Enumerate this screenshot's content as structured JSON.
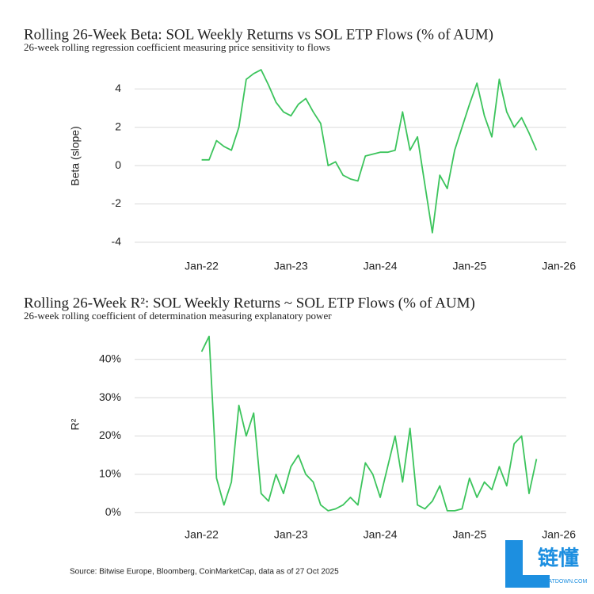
{
  "chart_data": [
    {
      "type": "line",
      "title": "Rolling 26-Week Beta: SOL Weekly Returns vs SOL ETP Flows (% of AUM)",
      "subtitle": "26-week rolling regression coefficient measuring price sensitivity to flows",
      "y_label": "Beta (slope)",
      "x": [
        "2022-01",
        "2022-02",
        "2022-03",
        "2022-04",
        "2022-05",
        "2022-06",
        "2022-07",
        "2022-08",
        "2022-09",
        "2022-10",
        "2022-11",
        "2022-12",
        "2023-01",
        "2023-02",
        "2023-03",
        "2023-04",
        "2023-05",
        "2023-06",
        "2023-07",
        "2023-08",
        "2023-09",
        "2023-10",
        "2023-11",
        "2023-12",
        "2024-01",
        "2024-02",
        "2024-03",
        "2024-04",
        "2024-05",
        "2024-06",
        "2024-07",
        "2024-08",
        "2024-09",
        "2024-10",
        "2024-11",
        "2024-12",
        "2025-01",
        "2025-02",
        "2025-03",
        "2025-04",
        "2025-05",
        "2025-06",
        "2025-07",
        "2025-08",
        "2025-09",
        "2025-10"
      ],
      "series": [
        {
          "name": "Beta",
          "color": "#3cc45c",
          "values": [
            0.3,
            0.3,
            1.3,
            1.0,
            0.8,
            2.0,
            4.5,
            4.8,
            5.0,
            4.2,
            3.3,
            2.8,
            2.6,
            3.2,
            3.5,
            2.8,
            2.2,
            0.0,
            0.2,
            -0.5,
            -0.7,
            -0.8,
            0.5,
            0.6,
            0.7,
            0.7,
            0.8,
            2.8,
            0.8,
            1.5,
            -1.0,
            -3.5,
            -0.5,
            -1.2,
            0.8,
            2.0,
            3.2,
            4.3,
            2.6,
            1.5,
            4.5,
            2.8,
            2.0,
            2.5,
            1.7,
            0.8
          ]
        }
      ],
      "xlim": [
        "2021-04",
        "2026-02"
      ],
      "xticks": [
        {
          "value": "2022-01",
          "label": "Jan-22"
        },
        {
          "value": "2023-01",
          "label": "Jan-23"
        },
        {
          "value": "2024-01",
          "label": "Jan-24"
        },
        {
          "value": "2025-01",
          "label": "Jan-25"
        },
        {
          "value": "2026-01",
          "label": "Jan-26"
        }
      ],
      "ylim": [
        -4.5,
        5.5
      ],
      "yticks": [
        -4,
        -2,
        0,
        2,
        4
      ],
      "grid": true
    },
    {
      "type": "line",
      "title": "Rolling 26-Week R²: SOL Weekly Returns ~ SOL ETP Flows (% of AUM)",
      "subtitle": "26-week rolling coefficient of determination measuring explanatory power",
      "y_label": "R²",
      "x": [
        "2022-01",
        "2022-02",
        "2022-03",
        "2022-04",
        "2022-05",
        "2022-06",
        "2022-07",
        "2022-08",
        "2022-09",
        "2022-10",
        "2022-11",
        "2022-12",
        "2023-01",
        "2023-02",
        "2023-03",
        "2023-04",
        "2023-05",
        "2023-06",
        "2023-07",
        "2023-08",
        "2023-09",
        "2023-10",
        "2023-11",
        "2023-12",
        "2024-01",
        "2024-02",
        "2024-03",
        "2024-04",
        "2024-05",
        "2024-06",
        "2024-07",
        "2024-08",
        "2024-09",
        "2024-10",
        "2024-11",
        "2024-12",
        "2025-01",
        "2025-02",
        "2025-03",
        "2025-04",
        "2025-05",
        "2025-06",
        "2025-07",
        "2025-08",
        "2025-09",
        "2025-10"
      ],
      "series": [
        {
          "name": "R²",
          "color": "#3cc45c",
          "values": [
            42,
            46,
            9,
            2,
            8,
            28,
            20,
            26,
            5,
            3,
            10,
            5,
            12,
            15,
            10,
            8,
            2,
            0.5,
            1,
            2,
            4,
            2,
            13,
            10,
            4,
            12,
            20,
            8,
            22,
            2,
            1,
            3,
            7,
            0.5,
            0.5,
            1,
            9,
            4,
            8,
            6,
            12,
            7,
            18,
            20,
            5,
            14
          ]
        }
      ],
      "xlim": [
        "2021-04",
        "2026-02"
      ],
      "xticks": [
        {
          "value": "2022-01",
          "label": "Jan-22"
        },
        {
          "value": "2023-01",
          "label": "Jan-23"
        },
        {
          "value": "2024-01",
          "label": "Jan-24"
        },
        {
          "value": "2025-01",
          "label": "Jan-25"
        },
        {
          "value": "2026-01",
          "label": "Jan-26"
        }
      ],
      "ylim": [
        -2,
        48
      ],
      "yticks": [
        {
          "value": 0,
          "label": "0%"
        },
        {
          "value": 10,
          "label": "10%"
        },
        {
          "value": 20,
          "label": "20%"
        },
        {
          "value": 30,
          "label": "30%"
        },
        {
          "value": 40,
          "label": "40%"
        }
      ],
      "grid": true
    }
  ],
  "source": "Source: Bitwise Europe, Bloomberg, CoinMarketCap, data as of 27 Oct 2025",
  "watermark": {
    "name": "链懂",
    "site": "NEATDOWN.COM"
  }
}
